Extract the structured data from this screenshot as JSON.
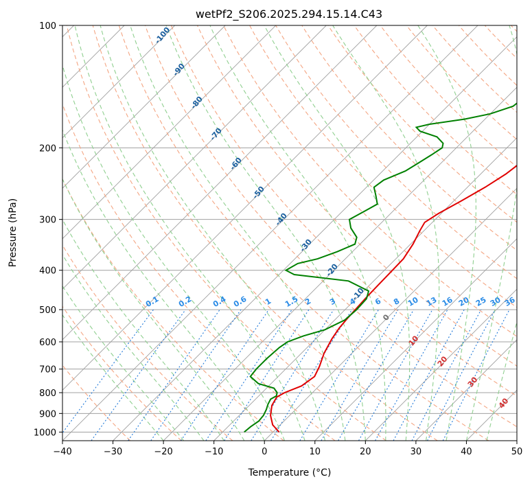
{
  "chart_data": {
    "type": "line",
    "subtype": "skew-t log-p diagram",
    "title": "wetPf2_S206.2025.294.15.14.C43",
    "xlabel": "Temperature (°C)",
    "ylabel": "Pressure (hPa)",
    "xlim": [
      -40,
      50
    ],
    "ylim": [
      1050,
      100
    ],
    "y_scale": "log",
    "grid": true,
    "x_ticks": [
      -40,
      -30,
      -20,
      -10,
      0,
      10,
      20,
      30,
      40,
      50
    ],
    "y_ticks": [
      100,
      200,
      300,
      400,
      500,
      600,
      700,
      800,
      900,
      1000
    ],
    "series": [
      {
        "role": "temperature",
        "color": "#e00000",
        "points": [
          [
            1.2,
            1000
          ],
          [
            -1.5,
            960
          ],
          [
            -3.8,
            910
          ],
          [
            -5.5,
            860
          ],
          [
            -6.2,
            820
          ],
          [
            -5.5,
            800
          ],
          [
            -3.5,
            770
          ],
          [
            -2.8,
            730
          ],
          [
            -3.8,
            690
          ],
          [
            -5.5,
            640
          ],
          [
            -6.8,
            590
          ],
          [
            -7.5,
            555
          ],
          [
            -7.8,
            525
          ],
          [
            -8.0,
            495
          ],
          [
            -8.2,
            465
          ],
          [
            -8.3,
            435
          ],
          [
            -8.4,
            405
          ],
          [
            -8.5,
            375
          ],
          [
            -9.5,
            345
          ],
          [
            -10.8,
            320
          ],
          [
            -11.5,
            305
          ],
          [
            -10.5,
            290
          ],
          [
            -8.5,
            270
          ],
          [
            -6.5,
            250
          ],
          [
            -5.0,
            232
          ],
          [
            -4.2,
            215
          ],
          [
            -4.5,
            200
          ],
          [
            -4.5,
            185
          ],
          [
            -5.8,
            165
          ],
          [
            -7.5,
            150
          ],
          [
            -8.8,
            138
          ],
          [
            -11.0,
            125
          ],
          [
            -13.5,
            112
          ],
          [
            -15.5,
            104
          ],
          [
            -16.5,
            100
          ]
        ]
      },
      {
        "role": "dewpoint",
        "color": "#008000",
        "points": [
          [
            -5.7,
            1000
          ],
          [
            -5.5,
            970
          ],
          [
            -5.0,
            940
          ],
          [
            -5.2,
            910
          ],
          [
            -5.8,
            880
          ],
          [
            -6.5,
            855
          ],
          [
            -7.0,
            830
          ],
          [
            -6.5,
            815
          ],
          [
            -7.0,
            800
          ],
          [
            -8.5,
            780
          ],
          [
            -12.5,
            760
          ],
          [
            -15.5,
            730
          ],
          [
            -15.8,
            700
          ],
          [
            -15.8,
            660
          ],
          [
            -15.5,
            620
          ],
          [
            -15.0,
            600
          ],
          [
            -13.0,
            580
          ],
          [
            -10.0,
            560
          ],
          [
            -8.0,
            530
          ],
          [
            -7.7,
            500
          ],
          [
            -7.9,
            470
          ],
          [
            -9.0,
            450
          ],
          [
            -15.0,
            425
          ],
          [
            -27.0,
            410
          ],
          [
            -29.5,
            400
          ],
          [
            -28.5,
            385
          ],
          [
            -25.5,
            375
          ],
          [
            -23.0,
            360
          ],
          [
            -21.0,
            345
          ],
          [
            -22.0,
            332
          ],
          [
            -25.0,
            315
          ],
          [
            -27.0,
            300
          ],
          [
            -25.5,
            285
          ],
          [
            -24.5,
            275
          ],
          [
            -26.5,
            262
          ],
          [
            -28.5,
            250
          ],
          [
            -28.0,
            240
          ],
          [
            -25.5,
            228
          ],
          [
            -24.5,
            218
          ],
          [
            -23.5,
            208
          ],
          [
            -22.8,
            200
          ],
          [
            -23.5,
            195
          ],
          [
            -26.0,
            188
          ],
          [
            -30.5,
            182
          ],
          [
            -32.0,
            178
          ],
          [
            -30.0,
            175
          ],
          [
            -24.0,
            170
          ],
          [
            -20.0,
            165
          ],
          [
            -17.0,
            158
          ],
          [
            -16.5,
            150
          ],
          [
            -17.0,
            140
          ],
          [
            -18.0,
            130
          ],
          [
            -19.5,
            120
          ],
          [
            -21.5,
            110
          ],
          [
            -22.5,
            104
          ],
          [
            -23.5,
            100
          ]
        ]
      }
    ],
    "dry_adiabat_labels": [
      "-100",
      "-90",
      "-80",
      "-70",
      "-60",
      "-50",
      "-40",
      "-30",
      "-20",
      "-10"
    ],
    "mixing_ratio_labels": [
      "0.1",
      "0.2",
      "0.4",
      "0.6",
      "1",
      "1.5",
      "2",
      "3",
      "4",
      "6",
      "8",
      "10",
      "13",
      "16",
      "20",
      "25",
      "30",
      "36"
    ],
    "moist_adiabat_labels": [
      "0",
      "10",
      "20",
      "30",
      "40"
    ],
    "colors": {
      "isotherm": "#a0a0a0",
      "isobar": "#a0a0a0",
      "dry_adiabat": "#f4a582",
      "moist_adiabat": "#8fcf8f",
      "mixing_ratio": "#1f78d8",
      "dry_label": "#1a5f9e",
      "mixing_label": "#2a8be6",
      "moist_label": "#d23030",
      "moist_zero_label": "#707070"
    }
  }
}
